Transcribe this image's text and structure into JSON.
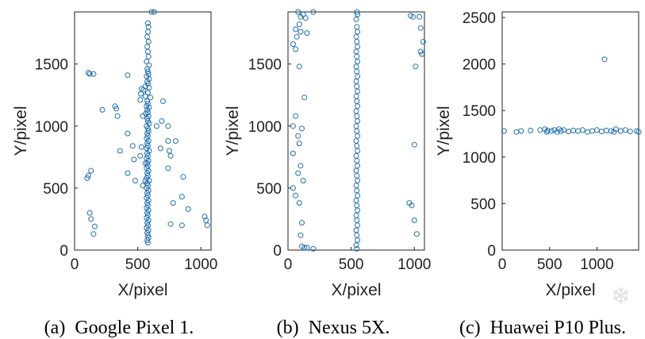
{
  "colors": {
    "marker": "#1f6fb2",
    "axis": "#222222",
    "watermark": "#d7dde6"
  },
  "watermark_icon": "snowflake-icon",
  "chart_data": [
    {
      "type": "scatter",
      "id": "a",
      "caption_tag": "(a)",
      "caption_text": "Google Pixel 1.",
      "xlabel": "X/pixel",
      "ylabel": "Y/pixel",
      "xlim": [
        0,
        1080
      ],
      "ylim": [
        0,
        1920
      ],
      "xticks": [
        0,
        500,
        1000
      ],
      "yticks": [
        0,
        500,
        1000,
        1500
      ],
      "points": [
        [
          610,
          1920
        ],
        [
          630,
          1920
        ],
        [
          580,
          1830
        ],
        [
          585,
          1800
        ],
        [
          580,
          1760
        ],
        [
          575,
          1720
        ],
        [
          585,
          1680
        ],
        [
          575,
          1640
        ],
        [
          580,
          1600
        ],
        [
          585,
          1560
        ],
        [
          570,
          1520
        ],
        [
          590,
          1490
        ],
        [
          575,
          1460
        ],
        [
          580,
          1440
        ],
        [
          585,
          1420
        ],
        [
          570,
          1400
        ],
        [
          590,
          1380
        ],
        [
          575,
          1360
        ],
        [
          580,
          1340
        ],
        [
          560,
          1320
        ],
        [
          590,
          1310
        ],
        [
          545,
          1290
        ],
        [
          580,
          1270
        ],
        [
          525,
          1260
        ],
        [
          560,
          1240
        ],
        [
          600,
          1230
        ],
        [
          520,
          1210
        ],
        [
          575,
          1200
        ],
        [
          580,
          1180
        ],
        [
          570,
          1160
        ],
        [
          590,
          1150
        ],
        [
          575,
          1130
        ],
        [
          580,
          1110
        ],
        [
          565,
          1100
        ],
        [
          585,
          1080
        ],
        [
          575,
          1060
        ],
        [
          580,
          1040
        ],
        [
          590,
          1020
        ],
        [
          570,
          1000
        ],
        [
          580,
          980
        ],
        [
          585,
          960
        ],
        [
          575,
          940
        ],
        [
          580,
          920
        ],
        [
          570,
          900
        ],
        [
          585,
          880
        ],
        [
          575,
          860
        ],
        [
          580,
          840
        ],
        [
          570,
          820
        ],
        [
          590,
          800
        ],
        [
          575,
          780
        ],
        [
          580,
          760
        ],
        [
          570,
          740
        ],
        [
          585,
          720
        ],
        [
          575,
          700
        ],
        [
          580,
          680
        ],
        [
          570,
          660
        ],
        [
          585,
          640
        ],
        [
          575,
          620
        ],
        [
          580,
          600
        ],
        [
          570,
          580
        ],
        [
          590,
          560
        ],
        [
          575,
          540
        ],
        [
          580,
          520
        ],
        [
          570,
          500
        ],
        [
          585,
          480
        ],
        [
          575,
          460
        ],
        [
          580,
          440
        ],
        [
          570,
          420
        ],
        [
          585,
          400
        ],
        [
          575,
          380
        ],
        [
          580,
          360
        ],
        [
          570,
          340
        ],
        [
          585,
          320
        ],
        [
          575,
          300
        ],
        [
          580,
          280
        ],
        [
          570,
          260
        ],
        [
          585,
          240
        ],
        [
          575,
          220
        ],
        [
          580,
          200
        ],
        [
          570,
          180
        ],
        [
          585,
          160
        ],
        [
          575,
          140
        ],
        [
          580,
          120
        ],
        [
          585,
          100
        ],
        [
          575,
          80
        ],
        [
          580,
          60
        ],
        [
          110,
          1430
        ],
        [
          120,
          1420
        ],
        [
          150,
          1420
        ],
        [
          420,
          1410
        ],
        [
          530,
          1300
        ],
        [
          700,
          1200
        ],
        [
          220,
          1130
        ],
        [
          320,
          1160
        ],
        [
          330,
          1140
        ],
        [
          340,
          1080
        ],
        [
          690,
          1040
        ],
        [
          540,
          1080
        ],
        [
          650,
          1000
        ],
        [
          740,
          1000
        ],
        [
          420,
          940
        ],
        [
          740,
          880
        ],
        [
          800,
          880
        ],
        [
          460,
          840
        ],
        [
          530,
          830
        ],
        [
          680,
          820
        ],
        [
          750,
          800
        ],
        [
          360,
          800
        ],
        [
          520,
          760
        ],
        [
          470,
          730
        ],
        [
          760,
          760
        ],
        [
          560,
          700
        ],
        [
          740,
          660
        ],
        [
          420,
          620
        ],
        [
          100,
          580
        ],
        [
          110,
          600
        ],
        [
          130,
          640
        ],
        [
          860,
          590
        ],
        [
          480,
          560
        ],
        [
          560,
          560
        ],
        [
          540,
          520
        ],
        [
          850,
          430
        ],
        [
          900,
          330
        ],
        [
          780,
          380
        ],
        [
          120,
          300
        ],
        [
          130,
          250
        ],
        [
          160,
          190
        ],
        [
          150,
          130
        ],
        [
          760,
          210
        ],
        [
          850,
          200
        ],
        [
          1030,
          270
        ],
        [
          1040,
          240
        ],
        [
          1050,
          200
        ]
      ]
    },
    {
      "type": "scatter",
      "id": "b",
      "caption_tag": "(b)",
      "caption_text": "Nexus 5X.",
      "xlabel": "X/pixel",
      "ylabel": "Y/pixel",
      "xlim": [
        0,
        1080
      ],
      "ylim": [
        0,
        1920
      ],
      "xticks": [
        0,
        500,
        1000
      ],
      "yticks": [
        0,
        500,
        1000,
        1500
      ],
      "points": [
        [
          545,
          1920
        ],
        [
          550,
          1900
        ],
        [
          540,
          1860
        ],
        [
          545,
          1800
        ],
        [
          550,
          1760
        ],
        [
          540,
          1720
        ],
        [
          545,
          1680
        ],
        [
          550,
          1640
        ],
        [
          540,
          1600
        ],
        [
          545,
          1560
        ],
        [
          550,
          1520
        ],
        [
          540,
          1480
        ],
        [
          545,
          1440
        ],
        [
          550,
          1400
        ],
        [
          540,
          1360
        ],
        [
          545,
          1320
        ],
        [
          550,
          1280
        ],
        [
          540,
          1240
        ],
        [
          545,
          1200
        ],
        [
          550,
          1160
        ],
        [
          540,
          1120
        ],
        [
          545,
          1080
        ],
        [
          550,
          1040
        ],
        [
          540,
          1000
        ],
        [
          545,
          960
        ],
        [
          550,
          920
        ],
        [
          540,
          880
        ],
        [
          545,
          840
        ],
        [
          550,
          800
        ],
        [
          540,
          760
        ],
        [
          545,
          720
        ],
        [
          550,
          680
        ],
        [
          540,
          640
        ],
        [
          545,
          600
        ],
        [
          550,
          560
        ],
        [
          540,
          520
        ],
        [
          545,
          480
        ],
        [
          550,
          440
        ],
        [
          540,
          400
        ],
        [
          545,
          360
        ],
        [
          550,
          320
        ],
        [
          540,
          280
        ],
        [
          545,
          240
        ],
        [
          550,
          200
        ],
        [
          540,
          160
        ],
        [
          545,
          120
        ],
        [
          550,
          80
        ],
        [
          540,
          40
        ],
        [
          545,
          10
        ],
        [
          80,
          1920
        ],
        [
          120,
          1900
        ],
        [
          200,
          1920
        ],
        [
          100,
          1880
        ],
        [
          140,
          1870
        ],
        [
          90,
          1820
        ],
        [
          60,
          1780
        ],
        [
          100,
          1760
        ],
        [
          150,
          1750
        ],
        [
          70,
          1720
        ],
        [
          40,
          1660
        ],
        [
          60,
          1620
        ],
        [
          90,
          1480
        ],
        [
          130,
          1230
        ],
        [
          60,
          1080
        ],
        [
          40,
          1000
        ],
        [
          110,
          980
        ],
        [
          80,
          920
        ],
        [
          90,
          860
        ],
        [
          40,
          780
        ],
        [
          100,
          680
        ],
        [
          80,
          620
        ],
        [
          120,
          560
        ],
        [
          40,
          500
        ],
        [
          60,
          440
        ],
        [
          90,
          380
        ],
        [
          110,
          220
        ],
        [
          100,
          120
        ],
        [
          110,
          30
        ],
        [
          130,
          20
        ],
        [
          150,
          20
        ],
        [
          200,
          10
        ],
        [
          970,
          1890
        ],
        [
          990,
          1880
        ],
        [
          1040,
          1880
        ],
        [
          1050,
          1790
        ],
        [
          1070,
          1680
        ],
        [
          1050,
          1600
        ],
        [
          1060,
          1580
        ],
        [
          1010,
          1480
        ],
        [
          1000,
          850
        ],
        [
          960,
          380
        ],
        [
          980,
          360
        ],
        [
          1000,
          240
        ],
        [
          1020,
          130
        ]
      ]
    },
    {
      "type": "scatter",
      "id": "c",
      "caption_tag": "(c)",
      "caption_text": "Huawei P10 Plus.",
      "xlabel": "X/pixel",
      "ylabel": "Y/pixel",
      "xlim": [
        0,
        1440
      ],
      "ylim": [
        0,
        2560
      ],
      "xticks": [
        0,
        500,
        1000
      ],
      "yticks": [
        0,
        500,
        1000,
        1500,
        2000,
        2500
      ],
      "points": [
        [
          20,
          1280
        ],
        [
          150,
          1270
        ],
        [
          200,
          1280
        ],
        [
          300,
          1285
        ],
        [
          400,
          1290
        ],
        [
          450,
          1300
        ],
        [
          480,
          1285
        ],
        [
          520,
          1280
        ],
        [
          550,
          1290
        ],
        [
          580,
          1270
        ],
        [
          620,
          1280
        ],
        [
          650,
          1290
        ],
        [
          700,
          1275
        ],
        [
          750,
          1285
        ],
        [
          800,
          1280
        ],
        [
          850,
          1290
        ],
        [
          900,
          1270
        ],
        [
          950,
          1280
        ],
        [
          1000,
          1290
        ],
        [
          1050,
          1275
        ],
        [
          1100,
          1285
        ],
        [
          1150,
          1280
        ],
        [
          1200,
          1300
        ],
        [
          1250,
          1280
        ],
        [
          1300,
          1290
        ],
        [
          1350,
          1275
        ],
        [
          1420,
          1280
        ],
        [
          1440,
          1270
        ],
        [
          470,
          1270
        ],
        [
          600,
          1300
        ],
        [
          1180,
          1270
        ],
        [
          1080,
          2050
        ]
      ]
    }
  ]
}
